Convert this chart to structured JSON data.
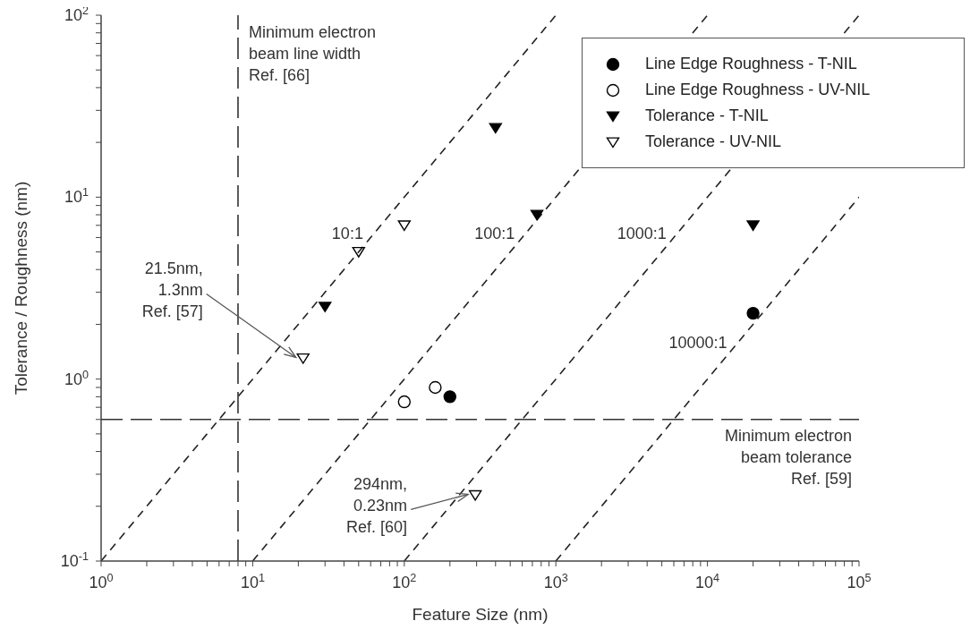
{
  "chart_data": {
    "type": "scatter",
    "xlabel": "Feature Size (nm)",
    "ylabel": "Tolerance / Roughness (nm)",
    "log": "xy",
    "xlim": [
      1,
      100000
    ],
    "ylim": [
      0.1,
      100
    ],
    "xticks": [
      {
        "value": 1,
        "label": "10$^{0}$"
      },
      {
        "value": 2,
        "label": null
      },
      {
        "value": 3,
        "label": null
      },
      {
        "value": 4,
        "label": null
      },
      {
        "value": 5,
        "label": null
      },
      {
        "value": 6,
        "label": null
      },
      {
        "value": 7,
        "label": null
      },
      {
        "value": 8,
        "label": null
      },
      {
        "value": 9,
        "label": null
      },
      {
        "value": 10,
        "label": "10$^{1}$"
      },
      {
        "value": 20,
        "label": null
      },
      {
        "value": 30,
        "label": null
      },
      {
        "value": 40,
        "label": null
      },
      {
        "value": 50,
        "label": null
      },
      {
        "value": 60,
        "label": null
      },
      {
        "value": 70,
        "label": null
      },
      {
        "value": 80,
        "label": null
      },
      {
        "value": 90,
        "label": null
      },
      {
        "value": 100,
        "label": "10$^{2}$"
      },
      {
        "value": 200,
        "label": null
      },
      {
        "value": 300,
        "label": null
      },
      {
        "value": 400,
        "label": null
      },
      {
        "value": 500,
        "label": null
      },
      {
        "value": 600,
        "label": null
      },
      {
        "value": 700,
        "label": null
      },
      {
        "value": 800,
        "label": null
      },
      {
        "value": 900,
        "label": null
      },
      {
        "value": 1000,
        "label": "10$^{3}$"
      },
      {
        "value": 2000,
        "label": null
      },
      {
        "value": 3000,
        "label": null
      },
      {
        "value": 4000,
        "label": null
      },
      {
        "value": 5000,
        "label": null
      },
      {
        "value": 6000,
        "label": null
      },
      {
        "value": 7000,
        "label": null
      },
      {
        "value": 8000,
        "label": null
      },
      {
        "value": 9000,
        "label": null
      },
      {
        "value": 10000,
        "label": "10$^{4}$"
      },
      {
        "value": 20000,
        "label": null
      },
      {
        "value": 30000,
        "label": null
      },
      {
        "value": 40000,
        "label": null
      },
      {
        "value": 50000,
        "label": null
      },
      {
        "value": 60000,
        "label": null
      },
      {
        "value": 70000,
        "label": null
      },
      {
        "value": 80000,
        "label": null
      },
      {
        "value": 90000,
        "label": null
      },
      {
        "value": 100000,
        "label": "10$^{5}$"
      }
    ],
    "yticks": [
      {
        "value": 0.1,
        "label": "10$^{-1}$"
      },
      {
        "value": 0.2,
        "label": null
      },
      {
        "value": 0.3,
        "label": null
      },
      {
        "value": 0.4,
        "label": null
      },
      {
        "value": 0.5,
        "label": null
      },
      {
        "value": 0.6,
        "label": null
      },
      {
        "value": 0.7,
        "label": null
      },
      {
        "value": 0.8,
        "label": null
      },
      {
        "value": 0.9,
        "label": null
      },
      {
        "value": 1,
        "label": "10$^{0}$"
      },
      {
        "value": 2,
        "label": null
      },
      {
        "value": 3,
        "label": null
      },
      {
        "value": 4,
        "label": null
      },
      {
        "value": 5,
        "label": null
      },
      {
        "value": 6,
        "label": null
      },
      {
        "value": 7,
        "label": null
      },
      {
        "value": 8,
        "label": null
      },
      {
        "value": 9,
        "label": null
      },
      {
        "value": 10,
        "label": "10$^{1}$"
      },
      {
        "value": 20,
        "label": null
      },
      {
        "value": 30,
        "label": null
      },
      {
        "value": 40,
        "label": null
      },
      {
        "value": 50,
        "label": null
      },
      {
        "value": 60,
        "label": null
      },
      {
        "value": 70,
        "label": null
      },
      {
        "value": 80,
        "label": null
      },
      {
        "value": 90,
        "label": null
      },
      {
        "value": 100,
        "label": "10$^{2}$"
      }
    ],
    "legend": "top right",
    "series": [
      {
        "name": "Line Edge Roughness - T-NIL",
        "color": "#000000",
        "marker": "circle",
        "x": [
          200,
          20000
        ],
        "values": [
          0.8,
          2.3
        ]
      },
      {
        "name": "Line Edge Roughness - UV-NIL",
        "color": "#000000",
        "marker": "circle-open",
        "x": [
          100,
          160
        ],
        "values": [
          0.75,
          0.9
        ]
      },
      {
        "name": "Tolerance - T-NIL",
        "color": "#000000",
        "marker": "triangle-down",
        "x": [
          30,
          400,
          750,
          20000
        ],
        "values": [
          2.5,
          24,
          8,
          7
        ]
      },
      {
        "name": "Tolerance - UV-NIL",
        "color": "#000000",
        "marker": "triangle-down-open",
        "x": [
          21.5,
          50,
          100,
          294
        ],
        "values": [
          1.3,
          5,
          7,
          0.23
        ]
      },
      {
        "name": "10:1",
        "type": "line",
        "color": "#222222",
        "line_style": "dashed",
        "marker": "none",
        "x": [
          1,
          1000
        ],
        "values": [
          0.1,
          100
        ]
      },
      {
        "name": "100:1",
        "type": "line",
        "color": "#222222",
        "line_style": "dashed",
        "marker": "none",
        "x": [
          10,
          10000
        ],
        "values": [
          0.1,
          100
        ]
      },
      {
        "name": "1000:1",
        "type": "line",
        "color": "#222222",
        "line_style": "dashed",
        "marker": "none",
        "x": [
          100,
          100000
        ],
        "values": [
          0.1,
          100
        ]
      },
      {
        "name": "10000:1",
        "type": "line",
        "color": "#222222",
        "line_style": "dashed",
        "marker": "none",
        "x": [
          1000,
          100000
        ],
        "values": [
          0.1,
          10
        ]
      }
    ],
    "ref_lines": [
      {
        "axis": "x",
        "value": 8,
        "label": "Minimum electron\nbeam line width\nRef. [66]",
        "color": "#333333",
        "line_style": "dashed"
      },
      {
        "axis": "y",
        "value": 0.6,
        "label": "Minimum electron\nbeam tolerance\nRef. [59]",
        "color": "#333333",
        "line_style": "dashed"
      }
    ],
    "annotations": [
      {
        "text": "21.5nm,\n1.3nm\nRef. [57]",
        "x": 21.5,
        "y": 1.3
      },
      {
        "text": "294nm,\n0.23nm\nRef. [60]",
        "x": 294,
        "y": 0.23
      }
    ]
  }
}
